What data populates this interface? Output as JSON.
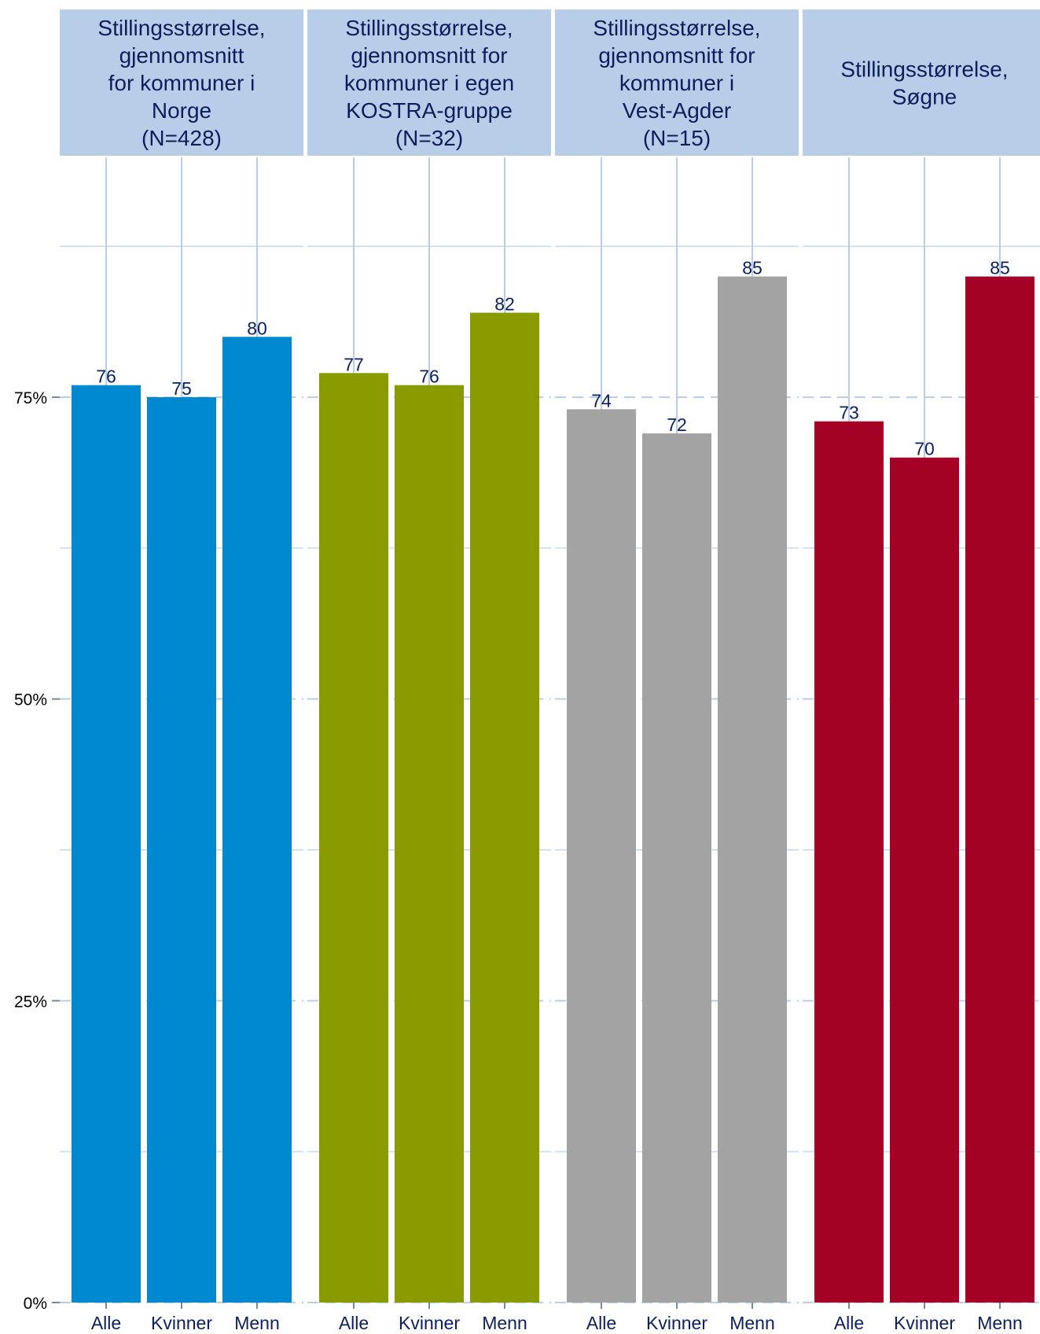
{
  "chart_data": {
    "type": "bar",
    "ylim": [
      0,
      100
    ],
    "yticks": [
      0,
      25,
      50,
      75
    ],
    "ytick_labels": [
      "0%",
      "25%",
      "50%",
      "75%"
    ],
    "categories": [
      "Alle",
      "Kvinner",
      "Menn"
    ],
    "grid": true,
    "panels": [
      {
        "title_lines": [
          "Stillingsstørrelse,",
          "gjennomsnitt",
          "for kommuner i",
          "Norge",
          "(N=428)"
        ],
        "color": "#0089d1",
        "values": [
          76,
          75,
          80
        ],
        "labels": [
          "76",
          "75",
          "80"
        ]
      },
      {
        "title_lines": [
          "Stillingsstørrelse,",
          "gjennomsnitt for",
          "kommuner i egen",
          "KOSTRA-gruppe",
          "(N=32)"
        ],
        "color": "#8a9b00",
        "values": [
          77,
          76,
          82
        ],
        "labels": [
          "77",
          "76",
          "82"
        ]
      },
      {
        "title_lines": [
          "Stillingsstørrelse,",
          "gjennomsnitt for",
          "kommuner i",
          "Vest-Agder",
          "(N=15)"
        ],
        "color": "#a2a3a2",
        "values": [
          74,
          72,
          85
        ],
        "labels": [
          "74",
          "72",
          "85"
        ]
      },
      {
        "title_lines": [
          "Stillingsstørrelse,",
          "Søgne"
        ],
        "color": "#a50026",
        "values": [
          73,
          70,
          85
        ],
        "labels": [
          "73",
          "70",
          "85"
        ]
      }
    ]
  }
}
